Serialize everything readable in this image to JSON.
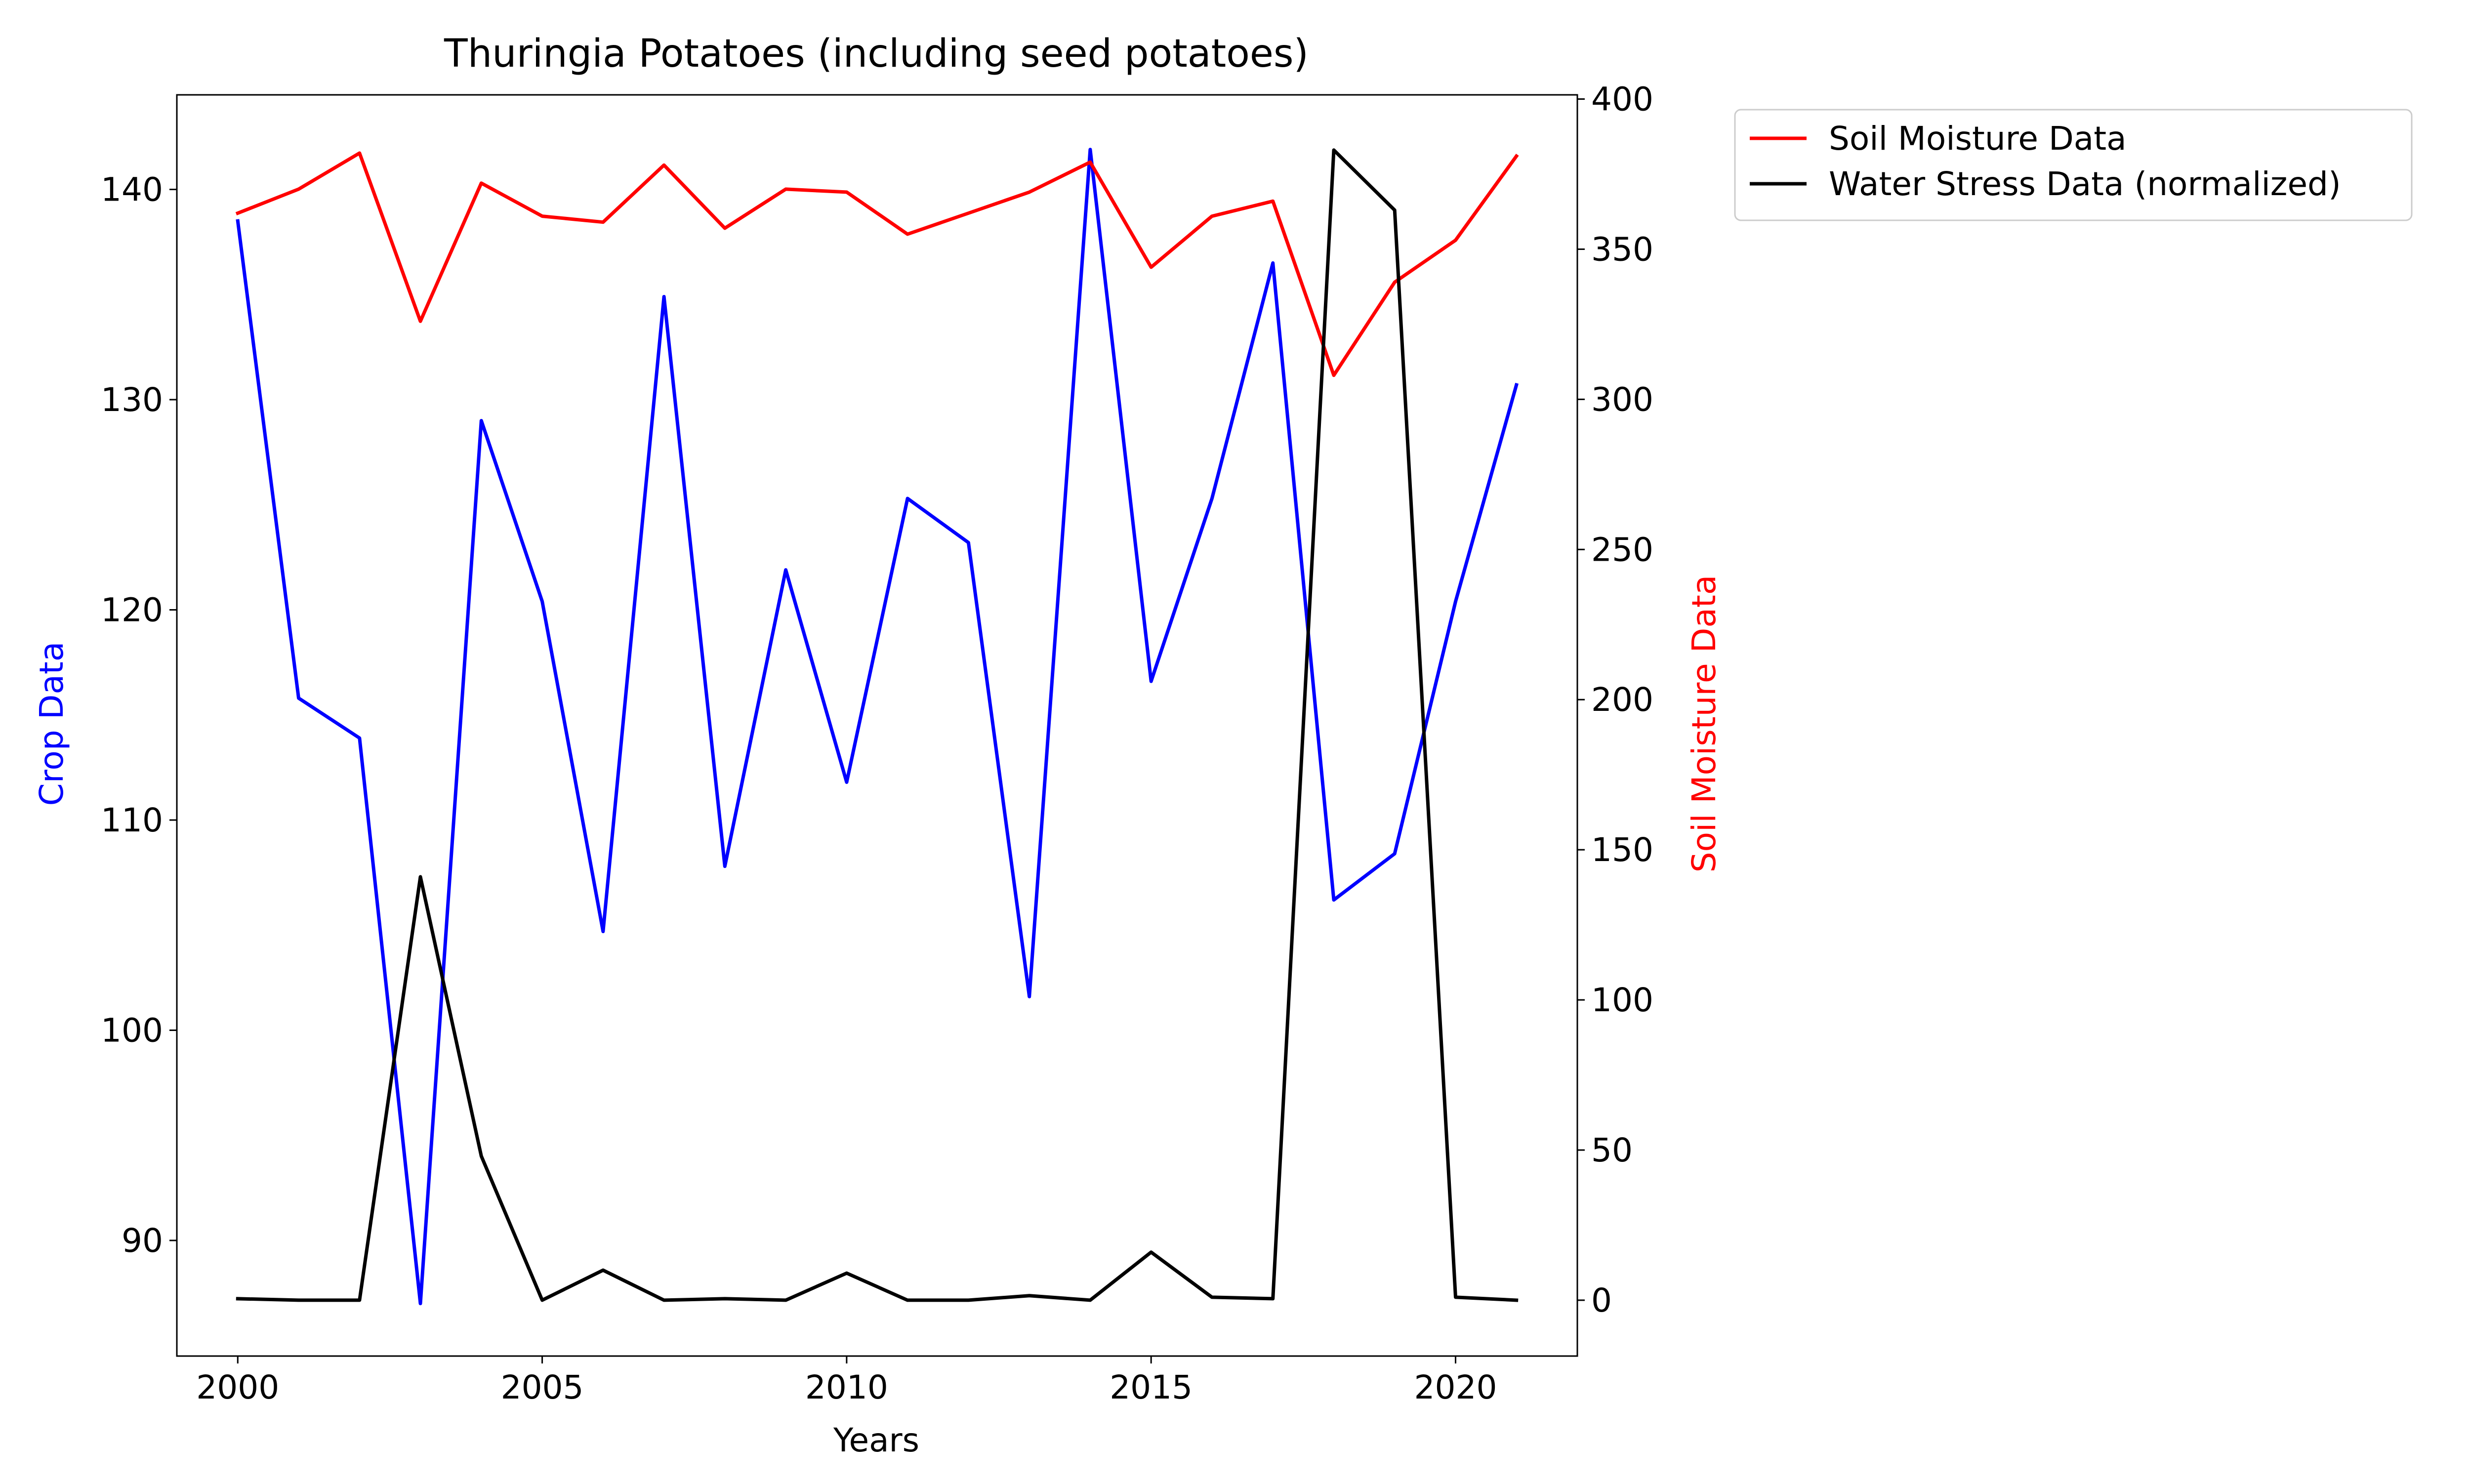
{
  "chart_data": {
    "type": "line",
    "title": "Thuringia Potatoes (including seed potatoes)",
    "xlabel": "Years",
    "ylabel_left": "Crop Data",
    "ylabel_right": "Soil Moisture Data",
    "xlim": [
      1999,
      2022
    ],
    "ylim_left": [
      84.5,
      144.5
    ],
    "ylim_right": [
      -18.6,
      401.4
    ],
    "x_ticks": [
      2000,
      2005,
      2010,
      2015,
      2020
    ],
    "y_left_ticks": [
      90,
      100,
      110,
      120,
      130,
      140
    ],
    "y_right_ticks": [
      0,
      50,
      100,
      150,
      200,
      250,
      300,
      350,
      400
    ],
    "grid": false,
    "legend_placement": "outside-top-right",
    "x": [
      2000,
      2001,
      2002,
      2003,
      2004,
      2005,
      2006,
      2007,
      2008,
      2009,
      2010,
      2011,
      2012,
      2013,
      2014,
      2015,
      2016,
      2017,
      2018,
      2019,
      2020,
      2021
    ],
    "series": [
      {
        "key": "crop",
        "axis": "left",
        "color": "#0000ff",
        "legend": false,
        "values": [
          138.5,
          115.8,
          113.9,
          87.0,
          129.0,
          120.4,
          104.7,
          134.9,
          107.8,
          121.9,
          111.8,
          125.3,
          123.2,
          101.6,
          141.9,
          116.6,
          125.3,
          136.5,
          106.2,
          108.4,
          120.4,
          130.7
        ]
      },
      {
        "key": "soil",
        "name": "Soil Moisture Data",
        "axis": "right",
        "color": "#ff0000",
        "legend": true,
        "values": [
          362,
          370,
          382,
          326,
          372,
          361,
          359,
          378,
          357,
          370,
          369,
          355,
          362,
          369,
          379,
          344,
          361,
          366,
          308,
          339,
          353,
          381
        ]
      },
      {
        "key": "water",
        "name": "Water Stress Data (normalized)",
        "axis": "right",
        "color": "#000000",
        "legend": true,
        "values": [
          0.5,
          0,
          0,
          141,
          48,
          0,
          10,
          0,
          0.5,
          0,
          9,
          0,
          0,
          1.5,
          0,
          16,
          1,
          0.5,
          383,
          363,
          1,
          0
        ]
      }
    ]
  }
}
